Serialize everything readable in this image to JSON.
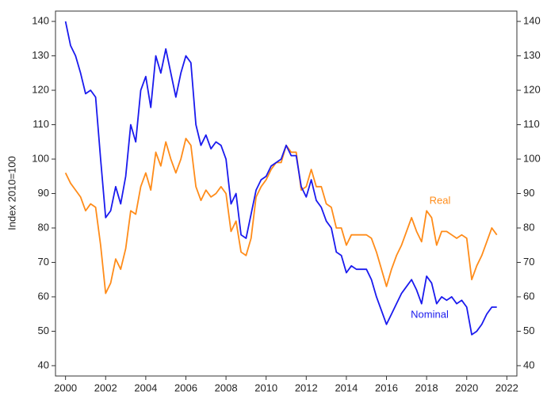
{
  "chart_data": {
    "type": "line",
    "y_label": "Index 2010=100",
    "x": [
      2000.0,
      2000.25,
      2000.5,
      2000.75,
      2001.0,
      2001.25,
      2001.5,
      2001.75,
      2002.0,
      2002.25,
      2002.5,
      2002.75,
      2003.0,
      2003.25,
      2003.5,
      2003.75,
      2004.0,
      2004.25,
      2004.5,
      2004.75,
      2005.0,
      2005.25,
      2005.5,
      2005.75,
      2006.0,
      2006.25,
      2006.5,
      2006.75,
      2007.0,
      2007.25,
      2007.5,
      2007.75,
      2008.0,
      2008.25,
      2008.5,
      2008.75,
      2009.0,
      2009.25,
      2009.5,
      2009.75,
      2010.0,
      2010.25,
      2010.5,
      2010.75,
      2011.0,
      2011.25,
      2011.5,
      2011.75,
      2012.0,
      2012.25,
      2012.5,
      2012.75,
      2013.0,
      2013.25,
      2013.5,
      2013.75,
      2014.0,
      2014.25,
      2014.5,
      2014.75,
      2015.0,
      2015.25,
      2015.5,
      2015.75,
      2016.0,
      2016.25,
      2016.5,
      2016.75,
      2017.0,
      2017.25,
      2017.5,
      2017.75,
      2018.0,
      2018.25,
      2018.5,
      2018.75,
      2019.0,
      2019.25,
      2019.5,
      2019.75,
      2020.0,
      2020.25,
      2020.5,
      2020.75,
      2021.0,
      2021.25,
      2021.5
    ],
    "series": [
      {
        "name": "Real",
        "color": "#ff8c1a",
        "values": [
          96,
          93,
          91,
          89,
          85,
          87,
          86,
          75,
          61,
          64,
          71,
          68,
          74,
          85,
          84,
          92,
          96,
          91,
          102,
          98,
          105,
          100,
          96,
          100,
          106,
          104,
          92,
          88,
          91,
          89,
          90,
          92,
          90,
          79,
          82,
          73,
          72,
          77,
          89,
          92,
          94,
          97,
          99,
          99,
          104,
          102,
          102,
          91,
          92,
          97,
          92,
          92,
          87,
          86,
          80,
          80,
          75,
          78,
          78,
          78,
          78,
          77,
          73,
          68,
          63,
          68,
          72,
          75,
          79,
          83,
          79,
          76,
          85,
          83,
          75,
          79,
          79,
          78,
          77,
          78,
          77,
          65,
          69,
          72,
          76,
          80,
          78
        ]
      },
      {
        "name": "Nominal",
        "color": "#1a1aee",
        "values": [
          140,
          133,
          130,
          125,
          119,
          120,
          118,
          100,
          83,
          85,
          92,
          87,
          95,
          110,
          105,
          120,
          124,
          115,
          130,
          125,
          132,
          125,
          118,
          125,
          130,
          128,
          110,
          104,
          107,
          103,
          105,
          104,
          100,
          87,
          90,
          78,
          77,
          84,
          91,
          94,
          95,
          98,
          99,
          100,
          104,
          101,
          101,
          92,
          89,
          94,
          88,
          86,
          82,
          80,
          73,
          72,
          67,
          69,
          68,
          68,
          68,
          65,
          60,
          56,
          52,
          55,
          58,
          61,
          63,
          65,
          62,
          58,
          66,
          64,
          58,
          60,
          59,
          60,
          58,
          59,
          57,
          49,
          50,
          52,
          55,
          57,
          57
        ]
      }
    ],
    "xlim": [
      1999.5,
      2022.5
    ],
    "xticks": [
      2000,
      2002,
      2004,
      2006,
      2008,
      2010,
      2012,
      2014,
      2016,
      2018,
      2020,
      2022
    ],
    "ylim": [
      37,
      143
    ],
    "yticks": [
      40,
      50,
      60,
      70,
      80,
      90,
      100,
      110,
      120,
      130,
      140
    ],
    "grid": false
  }
}
